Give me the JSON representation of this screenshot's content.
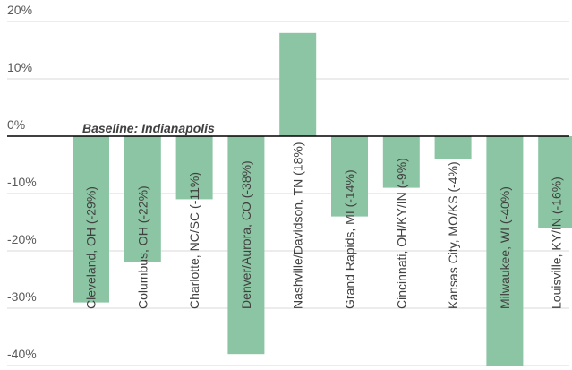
{
  "chart_data": {
    "type": "bar",
    "categories": [
      "Cleveland, OH (-29%)",
      "Columbus, OH (-22%)",
      "Charlotte, NC/SC (-11%)",
      "Denver/Aurora, CO (-38%)",
      "Nashville/Davidson, TN (18%)",
      "Grand Rapids, MI (-14%)",
      "Cincinnati, OH/KY/IN (-9%)",
      "Kansas City, MO/KS (-4%)",
      "Milwaukee, WI (-40%)",
      "Louisville, KY/IN (-16%)"
    ],
    "values": [
      -29,
      -22,
      -11,
      -38,
      18,
      -14,
      -9,
      -4,
      -40,
      -16
    ],
    "annotation": "Baseline: Indianapolis",
    "ylim": [
      -40,
      20
    ],
    "yticks": [
      "-40%",
      "-30%",
      "-20%",
      "-10%",
      "0%",
      "10%",
      "20%"
    ],
    "ytick_values": [
      -40,
      -30,
      -20,
      -10,
      0,
      10,
      20
    ],
    "grid": true,
    "colors": {
      "bar": "#8cc5a3",
      "zero_line": "#000000",
      "grid": "#d9d9d9",
      "label_on_bar": "#404040",
      "label_off_bar": "#404040"
    }
  }
}
